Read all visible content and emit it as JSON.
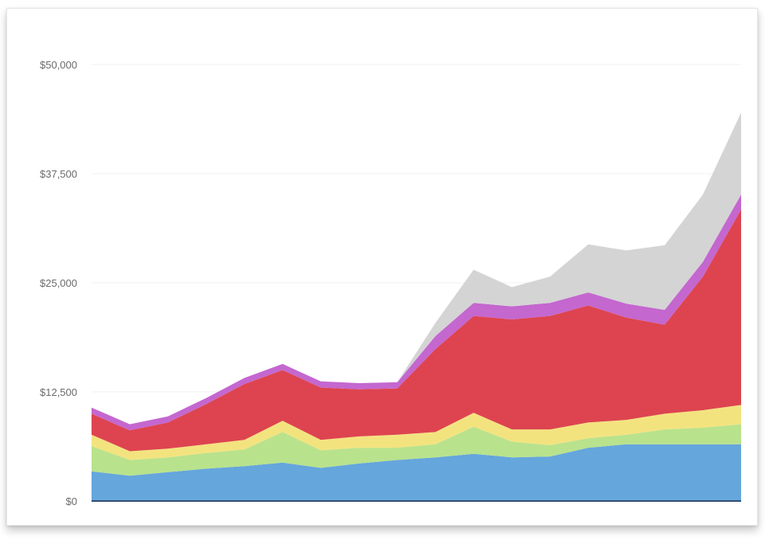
{
  "chart_data": {
    "type": "area",
    "stacked": true,
    "x": [
      1,
      2,
      3,
      4,
      5,
      6,
      7,
      8,
      9,
      10,
      11,
      12,
      13,
      14,
      15,
      16,
      17,
      18
    ],
    "ylim": [
      0,
      50000
    ],
    "yticks": [
      0,
      12500,
      25000,
      37500,
      50000
    ],
    "ytick_labels": [
      "$0",
      "$12,500",
      "$25,000",
      "$37,500",
      "$50,000"
    ],
    "grid": true,
    "legend": "none",
    "series": [
      {
        "color": "#65a6dc",
        "values": [
          3400,
          2900,
          3300,
          3700,
          4000,
          4400,
          3800,
          4300,
          4700,
          5000,
          5400,
          5000,
          5100,
          6100,
          6500,
          6500,
          6500,
          6500
        ]
      },
      {
        "color": "#b9e28c",
        "values": [
          2900,
          1800,
          1700,
          1800,
          1900,
          3500,
          2000,
          1800,
          1400,
          1500,
          3100,
          1800,
          1300,
          1100,
          1100,
          1700,
          1900,
          2300
        ]
      },
      {
        "color": "#f3e37f",
        "values": [
          1300,
          1000,
          1000,
          1000,
          1100,
          1300,
          1200,
          1300,
          1500,
          1400,
          1600,
          1400,
          1800,
          1800,
          1700,
          1800,
          2000,
          2200
        ]
      },
      {
        "color": "#dd4450",
        "values": [
          2400,
          2400,
          3000,
          4600,
          6400,
          5800,
          6000,
          5400,
          5300,
          9500,
          11100,
          12600,
          13000,
          13400,
          11700,
          10200,
          15300,
          22400
        ]
      },
      {
        "color": "#c467cf",
        "values": [
          700,
          700,
          700,
          700,
          700,
          700,
          700,
          700,
          700,
          1500,
          1500,
          1500,
          1500,
          1500,
          1600,
          1700,
          1700,
          1700
        ]
      },
      {
        "color": "#d4d4d4",
        "values": [
          0,
          0,
          0,
          0,
          0,
          0,
          0,
          0,
          0,
          1500,
          3800,
          2200,
          3000,
          5500,
          6100,
          7400,
          7700,
          9400
        ]
      }
    ]
  }
}
